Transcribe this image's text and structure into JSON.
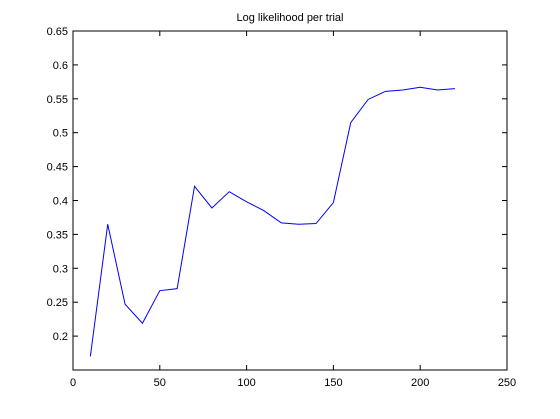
{
  "chart_data": {
    "type": "line",
    "title": "Log likelihood per trial",
    "xlabel": "",
    "ylabel": "",
    "xlim": [
      0,
      250
    ],
    "ylim": [
      0.15,
      0.65
    ],
    "xticks": [
      0,
      50,
      100,
      150,
      200,
      250
    ],
    "yticks": [
      0.2,
      0.25,
      0.3,
      0.35,
      0.4,
      0.45,
      0.5,
      0.55,
      0.6,
      0.65
    ],
    "xtick_labels": [
      "0",
      "50",
      "100",
      "150",
      "200",
      "250"
    ],
    "ytick_labels": [
      "0.2",
      "0.25",
      "0.3",
      "0.35",
      "0.4",
      "0.45",
      "0.5",
      "0.55",
      "0.6",
      "0.65"
    ],
    "grid": false,
    "legend": "none",
    "series": [
      {
        "color": "#0000ff",
        "x": [
          10,
          20,
          30,
          40,
          50,
          60,
          70,
          80,
          90,
          100,
          110,
          120,
          130,
          140,
          150,
          160,
          170,
          180,
          190,
          200,
          210,
          220
        ],
        "y": [
          0.17,
          0.365,
          0.247,
          0.219,
          0.267,
          0.27,
          0.421,
          0.389,
          0.413,
          0.398,
          0.385,
          0.367,
          0.365,
          0.366,
          0.397,
          0.515,
          0.549,
          0.561,
          0.563,
          0.567,
          0.563,
          0.565
        ]
      }
    ]
  }
}
